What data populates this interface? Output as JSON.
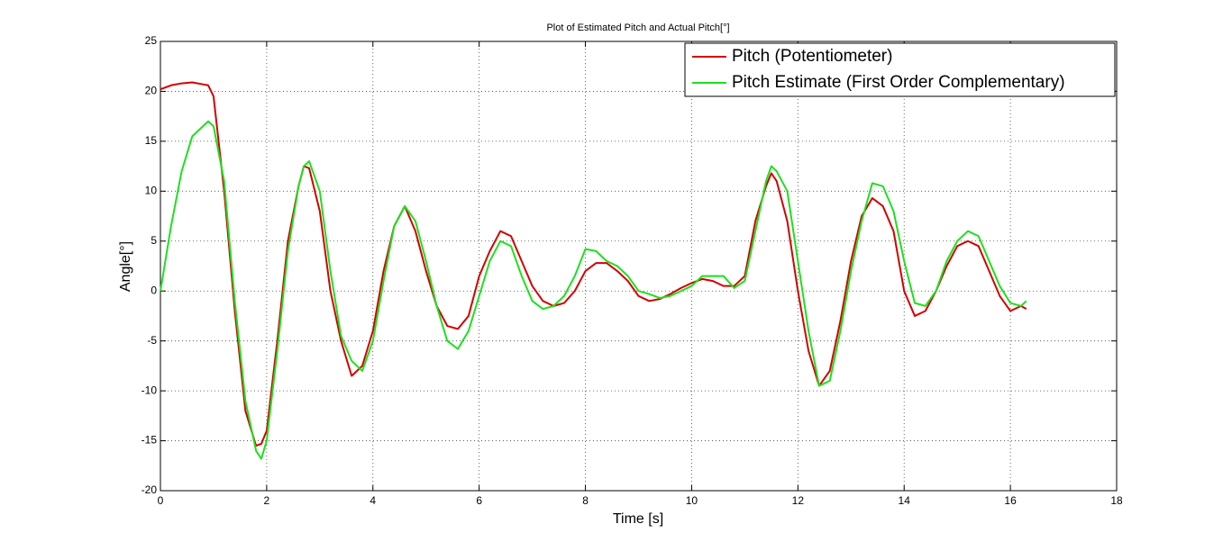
{
  "chart_data": {
    "type": "line",
    "title": "Plot of Estimated Pitch and Actual Pitch[°]",
    "xlabel": "Time [s]",
    "ylabel": "Angle[°]",
    "x": [
      0,
      0.2,
      0.4,
      0.6,
      0.8,
      0.9,
      1.0,
      1.2,
      1.4,
      1.6,
      1.8,
      1.9,
      2.0,
      2.2,
      2.4,
      2.6,
      2.7,
      2.8,
      3.0,
      3.2,
      3.4,
      3.6,
      3.8,
      4.0,
      4.2,
      4.4,
      4.6,
      4.8,
      5.0,
      5.2,
      5.4,
      5.6,
      5.8,
      6.0,
      6.2,
      6.4,
      6.6,
      6.8,
      7.0,
      7.2,
      7.4,
      7.6,
      7.8,
      8.0,
      8.2,
      8.4,
      8.6,
      8.8,
      9.0,
      9.2,
      9.4,
      9.6,
      9.8,
      10.0,
      10.2,
      10.4,
      10.6,
      10.8,
      11.0,
      11.2,
      11.4,
      11.5,
      11.6,
      11.8,
      12.0,
      12.2,
      12.4,
      12.6,
      12.8,
      13.0,
      13.2,
      13.4,
      13.6,
      13.8,
      14.0,
      14.2,
      14.4,
      14.6,
      14.8,
      15.0,
      15.2,
      15.4,
      15.6,
      15.8,
      16.0,
      16.2,
      16.3
    ],
    "series": [
      {
        "name": "Pitch (Potentiometer)",
        "color": "#d40000",
        "values": [
          20.2,
          20.6,
          20.8,
          20.9,
          20.7,
          20.6,
          19.5,
          10,
          -2,
          -12,
          -15.5,
          -15.3,
          -14,
          -5,
          5,
          10.5,
          12.5,
          12.3,
          8,
          0,
          -5,
          -8.5,
          -7.5,
          -4,
          2,
          6.5,
          8.5,
          6,
          2,
          -1.5,
          -3.5,
          -3.8,
          -2.5,
          1.5,
          4,
          6,
          5.5,
          3,
          0.5,
          -1,
          -1.5,
          -1.2,
          0,
          2,
          2.8,
          2.8,
          2,
          1,
          -0.5,
          -1,
          -0.8,
          -0.3,
          0.3,
          0.8,
          1.2,
          1,
          0.5,
          0.5,
          1.5,
          7,
          10.5,
          11.8,
          11,
          7,
          0,
          -6,
          -9.5,
          -8,
          -3,
          3,
          7.5,
          9.3,
          8.5,
          6,
          0,
          -2.5,
          -2,
          0,
          2.5,
          4.5,
          5,
          4.5,
          2,
          -0.5,
          -2,
          -1.5,
          -1.8
        ]
      },
      {
        "name": "Pitch Estimate (First Order Complementary)",
        "color": "#1ee01e",
        "values": [
          0,
          6.5,
          12,
          15.5,
          16.5,
          17,
          16.5,
          11,
          -1,
          -11,
          -16,
          -16.8,
          -15,
          -6,
          4,
          10.5,
          12.5,
          13,
          10,
          2,
          -4.5,
          -7,
          -8,
          -5,
          1,
          6.5,
          8.5,
          7,
          3,
          -1.5,
          -5,
          -5.8,
          -4,
          -0.5,
          3,
          5,
          4.5,
          1.5,
          -1,
          -1.8,
          -1.5,
          -0.5,
          1.5,
          4.2,
          4,
          3,
          2.5,
          1.5,
          0,
          -0.3,
          -0.7,
          -0.5,
          0,
          0.5,
          1.5,
          1.5,
          1.5,
          0.3,
          1,
          6,
          11,
          12.5,
          12,
          10,
          3,
          -4,
          -9.5,
          -9,
          -4,
          2,
          7,
          10.8,
          10.5,
          8,
          3,
          -1.2,
          -1.5,
          0,
          3,
          5,
          6,
          5.5,
          3,
          0.5,
          -1.2,
          -1.5,
          -1
        ]
      }
    ],
    "xlim": [
      0,
      18
    ],
    "xticks": [
      0,
      2,
      4,
      6,
      8,
      10,
      12,
      14,
      16,
      18
    ],
    "ylim": [
      -20,
      25
    ],
    "yticks": [
      -20,
      -15,
      -10,
      -5,
      0,
      5,
      10,
      15,
      20,
      25
    ],
    "grid": true,
    "legend": "northeast"
  }
}
